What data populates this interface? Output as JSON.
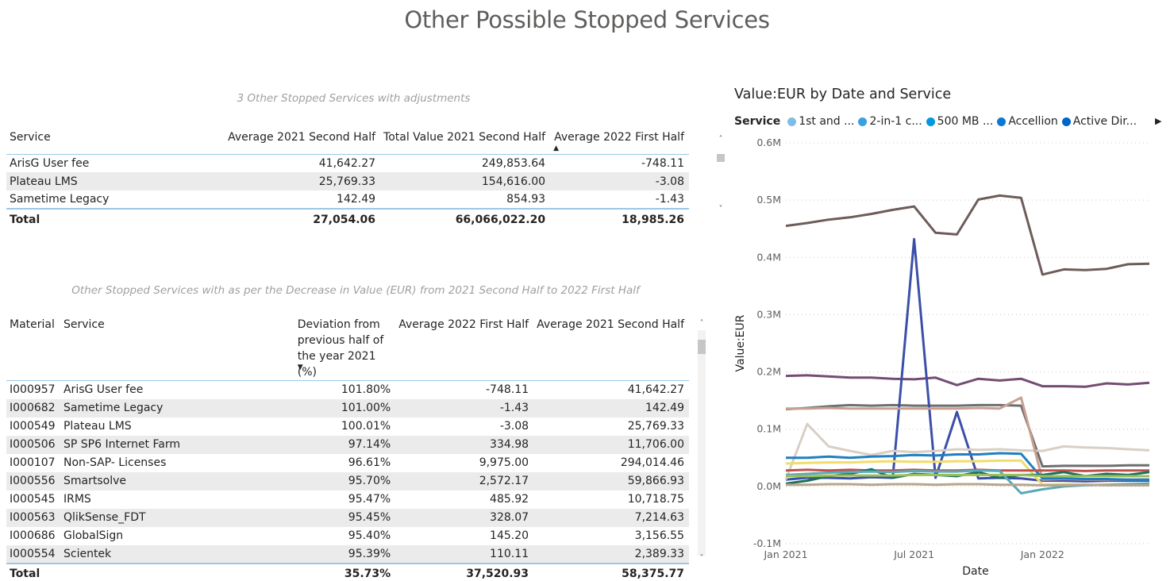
{
  "page": {
    "title": "Other Possible Stopped Services"
  },
  "table1": {
    "subtitle": "3 Other Stopped Services with adjustments",
    "headers": [
      "Service",
      "Average 2021 Second Half",
      "Total Value 2021 Second Half",
      "Average 2022 First Half"
    ],
    "sorted_column": "Average 2022 First Half",
    "rows": [
      [
        "ArisG User fee",
        "41,642.27",
        "249,853.64",
        "-748.11"
      ],
      [
        "Plateau LMS",
        "25,769.33",
        "154,616.00",
        "-3.08"
      ],
      [
        "Sametime Legacy",
        "142.49",
        "854.93",
        "-1.43"
      ]
    ],
    "total": [
      "Total",
      "27,054.06",
      "66,066,022.20",
      "18,985.26"
    ]
  },
  "table2": {
    "subtitle": "Other Stopped Services with as per the Decrease in Value (EUR) from 2021 Second Half to 2022 First Half",
    "headers": [
      "Material",
      "Service",
      "Deviation from previous half of the year 2021 (%)",
      "Average 2022 First Half",
      "Average 2021 Second Half"
    ],
    "sorted_column": "Deviation from previous half of the year 2021 (%)",
    "rows": [
      [
        "I000957",
        "ArisG User fee",
        "101.80%",
        "-748.11",
        "41,642.27"
      ],
      [
        "I000682",
        "Sametime Legacy",
        "101.00%",
        "-1.43",
        "142.49"
      ],
      [
        "I000549",
        "Plateau LMS",
        "100.01%",
        "-3.08",
        "25,769.33"
      ],
      [
        "I000506",
        "SP SP6 Internet Farm",
        "97.14%",
        "334.98",
        "11,706.00"
      ],
      [
        "I000107",
        "Non-SAP- Licenses",
        "96.61%",
        "9,975.00",
        "294,014.46"
      ],
      [
        "I000556",
        "Smartsolve",
        "95.70%",
        "2,572.17",
        "59,866.93"
      ],
      [
        "I000545",
        "IRMS",
        "95.47%",
        "485.92",
        "10,718.75"
      ],
      [
        "I000563",
        "QlikSense_FDT",
        "95.45%",
        "328.07",
        "7,214.63"
      ],
      [
        "I000686",
        "GlobalSign",
        "95.40%",
        "145.20",
        "3,156.55"
      ],
      [
        "I000554",
        "Scientek",
        "95.39%",
        "110.11",
        "2,389.33"
      ]
    ],
    "total": [
      "Total",
      "",
      "35.73%",
      "37,520.93",
      "58,375.77"
    ]
  },
  "chart_data": {
    "type": "line",
    "title": "Value:EUR by Date and Service",
    "xlabel": "Date",
    "ylabel": "Value:EUR",
    "legend_title": "Service",
    "legend_placement": "top",
    "legend": [
      {
        "name": "1st and ...",
        "color": "#7fbde8"
      },
      {
        "name": "2-in-1 c...",
        "color": "#3aa0e0"
      },
      {
        "name": "500 MB ...",
        "color": "#0099e0"
      },
      {
        "name": "Accellion",
        "color": "#0a78d4"
      },
      {
        "name": "Active Dir...",
        "color": "#0064c8"
      }
    ],
    "ylim": [
      -0.1,
      0.6
    ],
    "y_unit": "M",
    "y_ticks": [
      "-0.1M",
      "0.0M",
      "0.1M",
      "0.2M",
      "0.3M",
      "0.4M",
      "0.5M",
      "0.6M"
    ],
    "y_tick_values": [
      -0.1,
      0.0,
      0.1,
      0.2,
      0.3,
      0.4,
      0.5,
      0.6
    ],
    "x_ticks": [
      "Jan 2021",
      "Jul 2021",
      "Jan 2022"
    ],
    "x_tick_months": [
      0,
      6,
      12
    ],
    "grid": true,
    "x": [
      0,
      1,
      2,
      3,
      4,
      5,
      6,
      7,
      8,
      9,
      10,
      11,
      12,
      13,
      14,
      15,
      16,
      17
    ],
    "series": [
      {
        "color": "#6d5c5a",
        "values": [
          0.455,
          0.46,
          0.466,
          0.47,
          0.476,
          0.483,
          0.489,
          0.443,
          0.44,
          0.501,
          0.508,
          0.504,
          0.37,
          0.379,
          0.378,
          0.38,
          0.388,
          0.389
        ]
      },
      {
        "color": "#744c72",
        "values": [
          0.193,
          0.194,
          0.192,
          0.19,
          0.19,
          0.188,
          0.187,
          0.19,
          0.177,
          0.188,
          0.185,
          0.188,
          0.175,
          0.175,
          0.174,
          0.18,
          0.178,
          0.181
        ]
      },
      {
        "color": "#6e6e6e",
        "values": [
          0.135,
          0.137,
          0.14,
          0.142,
          0.141,
          0.142,
          0.141,
          0.141,
          0.141,
          0.142,
          0.142,
          0.141,
          0.035,
          0.036,
          0.036,
          0.036,
          0.037,
          0.037
        ]
      },
      {
        "color": "#3c4fa8",
        "values": [
          0.012,
          0.015,
          0.015,
          0.014,
          0.016,
          0.015,
          0.432,
          0.015,
          0.13,
          0.014,
          0.015,
          0.014,
          0.01,
          0.01,
          0.009,
          0.01,
          0.01,
          0.01
        ]
      },
      {
        "color": "#d9cfc4",
        "values": [
          0.012,
          0.109,
          0.07,
          0.062,
          0.055,
          0.062,
          0.06,
          0.062,
          0.065,
          0.064,
          0.065,
          0.063,
          0.062,
          0.07,
          0.068,
          0.067,
          0.065,
          0.063
        ]
      },
      {
        "color": "#c7a091",
        "values": [
          0.136,
          0.136,
          0.137,
          0.136,
          0.136,
          0.136,
          0.136,
          0.136,
          0.136,
          0.137,
          0.136,
          0.155,
          0.012,
          0.013,
          0.012,
          0.012,
          0.012,
          0.012
        ]
      },
      {
        "color": "#1f7fbf",
        "values": [
          0.05,
          0.05,
          0.052,
          0.05,
          0.052,
          0.053,
          0.055,
          0.054,
          0.056,
          0.056,
          0.058,
          0.057,
          0.014,
          0.014,
          0.013,
          0.013,
          0.012,
          0.012
        ]
      },
      {
        "color": "#f2dc6a",
        "values": [
          0.04,
          0.041,
          0.042,
          0.042,
          0.043,
          0.044,
          0.043,
          0.043,
          0.044,
          0.044,
          0.045,
          0.045,
          0.003,
          0.004,
          0.003,
          0.003,
          0.003,
          0.003
        ]
      },
      {
        "color": "#c0504d",
        "values": [
          0.028,
          0.029,
          0.028,
          0.029,
          0.028,
          0.028,
          0.029,
          0.028,
          0.028,
          0.029,
          0.028,
          0.028,
          0.028,
          0.028,
          0.027,
          0.028,
          0.028,
          0.028
        ]
      },
      {
        "color": "#1b6f5d",
        "values": [
          0.005,
          0.01,
          0.018,
          0.022,
          0.03,
          0.015,
          0.022,
          0.02,
          0.018,
          0.025,
          0.015,
          0.02,
          0.02,
          0.025,
          0.018,
          0.022,
          0.02,
          0.025
        ]
      },
      {
        "color": "#5aa9b8",
        "values": [
          0.02,
          0.022,
          0.024,
          0.025,
          0.026,
          0.025,
          0.027,
          0.026,
          0.026,
          0.028,
          0.027,
          -0.012,
          -0.005,
          0.0,
          0.002,
          0.003,
          0.004,
          0.005
        ]
      },
      {
        "color": "#9dbf5a",
        "values": [
          0.018,
          0.018,
          0.019,
          0.019,
          0.019,
          0.019,
          0.02,
          0.02,
          0.02,
          0.02,
          0.02,
          0.02,
          0.018,
          0.018,
          0.018,
          0.018,
          0.018,
          0.018
        ]
      },
      {
        "color": "#b5a68c",
        "values": [
          0.003,
          0.003,
          0.004,
          0.004,
          0.003,
          0.004,
          0.004,
          0.003,
          0.004,
          0.004,
          0.003,
          0.003,
          0.002,
          0.002,
          0.003,
          0.002,
          0.002,
          0.002
        ]
      }
    ]
  }
}
